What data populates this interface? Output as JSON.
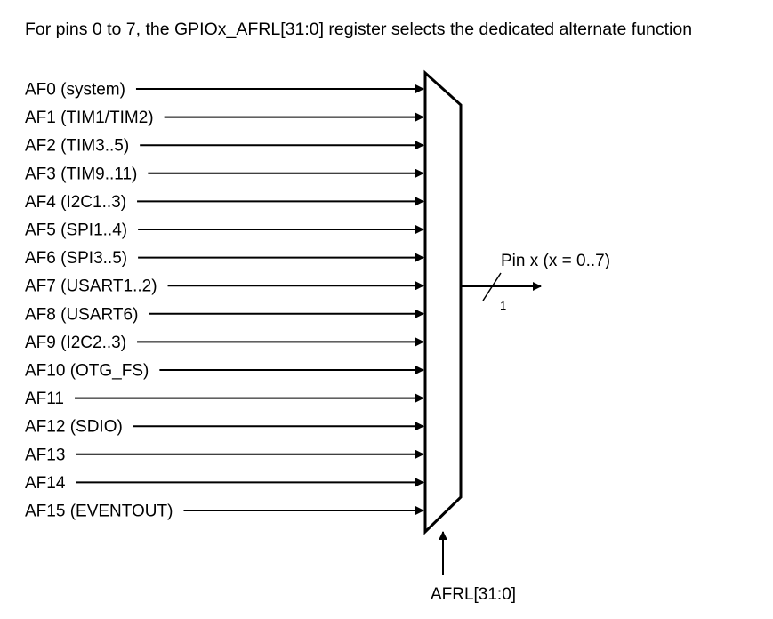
{
  "title": "For pins 0 to 7, the GPIOx_AFRL[31:0] register selects the dedicated alternate function",
  "inputs": [
    "AF0 (system)",
    "AF1 (TIM1/TIM2)",
    "AF2 (TIM3..5)",
    "AF3 (TIM9..11)",
    "AF4 (I2C1..3)",
    "AF5 (SPI1..4)",
    "AF6 (SPI3..5)",
    "AF7 (USART1..2)",
    "AF8 (USART6)",
    "AF9 (I2C2..3)",
    "AF10 (OTG_FS)",
    "AF11",
    "AF12 (SDIO)",
    "AF13",
    "AF14",
    "AF15 (EVENTOUT)"
  ],
  "output": {
    "label": "Pin x (x = 0..7)",
    "bus_width": "1"
  },
  "select": {
    "label": "AFRL[31:0]"
  }
}
